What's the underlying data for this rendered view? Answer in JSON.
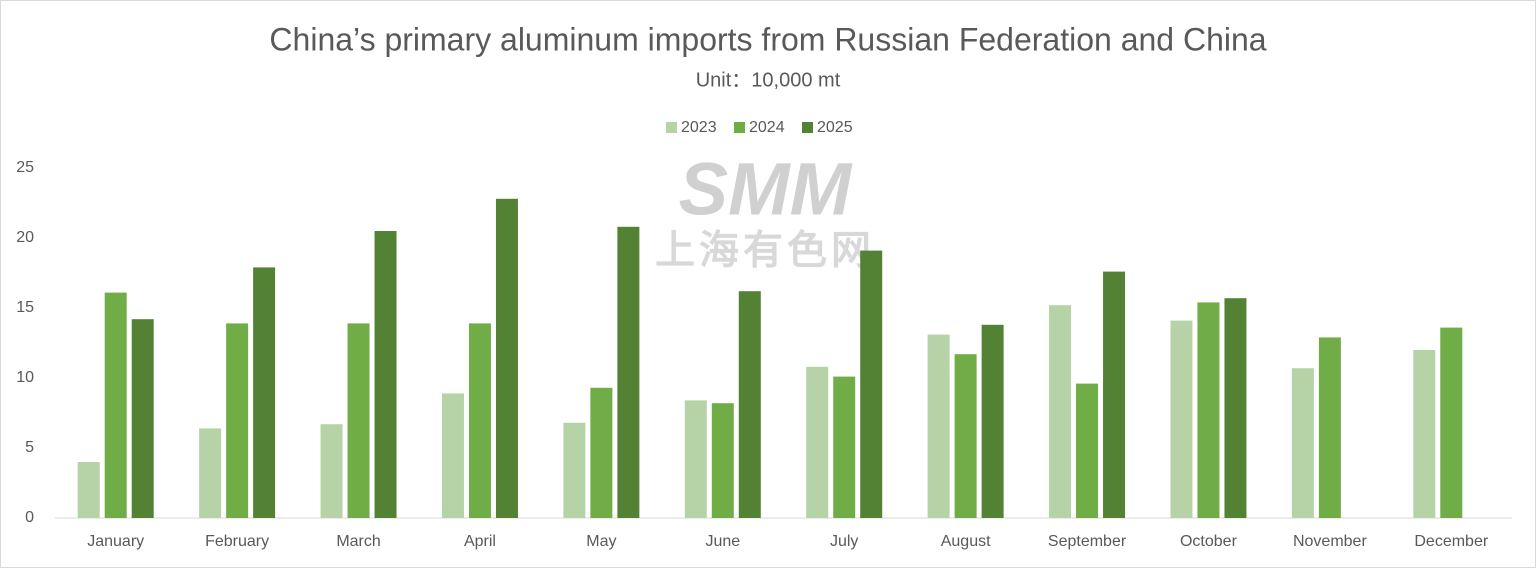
{
  "chart_data": {
    "type": "bar",
    "title": "China’s primary aluminum imports from Russian Federation and China",
    "subtitle": "Unit：10,000 mt",
    "watermark": [
      "SMM",
      "上海有色网"
    ],
    "categories": [
      "January",
      "February",
      "March",
      "April",
      "May",
      "June",
      "July",
      "August",
      "September",
      "October",
      "November",
      "December"
    ],
    "series": [
      {
        "name": "2023",
        "color": "#b5d3a7",
        "values": [
          4.0,
          6.4,
          6.7,
          8.9,
          6.8,
          8.4,
          10.8,
          13.1,
          15.2,
          14.1,
          10.7,
          12.0
        ]
      },
      {
        "name": "2024",
        "color": "#70ad47",
        "values": [
          16.1,
          13.9,
          13.9,
          13.9,
          9.3,
          8.2,
          10.1,
          11.7,
          9.6,
          15.4,
          12.9,
          13.6
        ]
      },
      {
        "name": "2025",
        "color": "#548235",
        "values": [
          14.2,
          17.9,
          20.5,
          22.8,
          20.8,
          16.2,
          19.1,
          13.8,
          17.6,
          15.7,
          null,
          null
        ]
      }
    ],
    "ylim": [
      0,
      25
    ],
    "yticks": [
      0,
      5,
      10,
      15,
      20,
      25
    ],
    "grid": false,
    "legend": "top"
  }
}
